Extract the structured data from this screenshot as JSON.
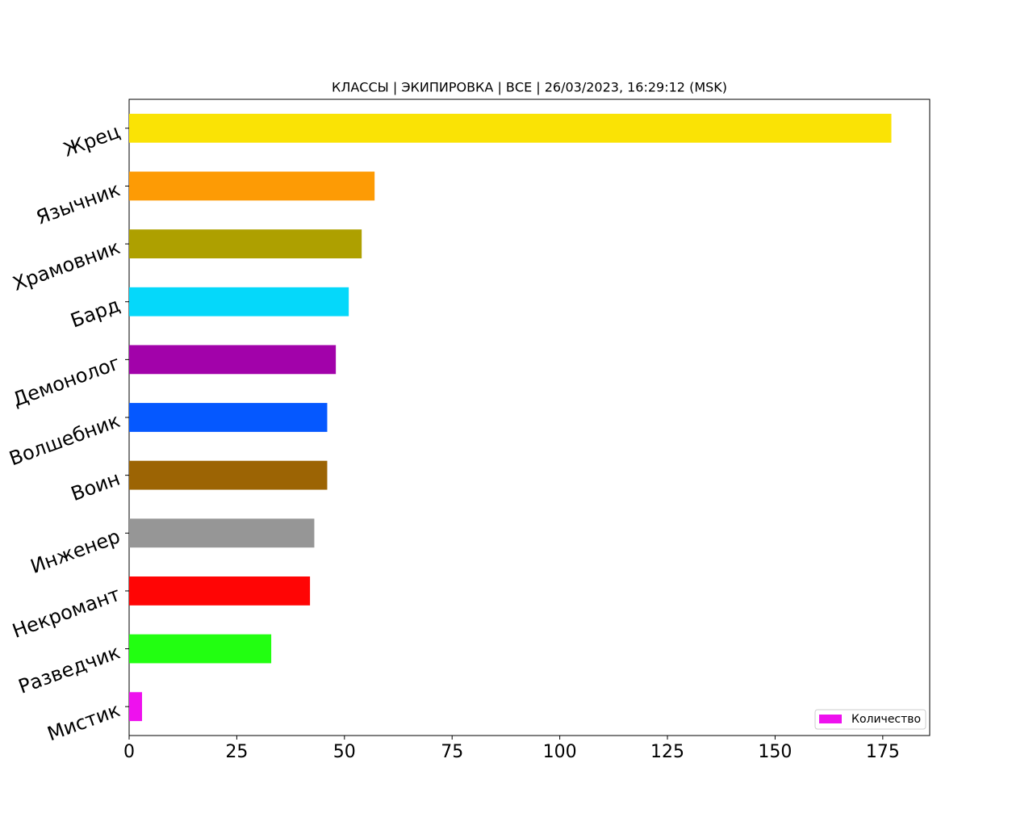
{
  "chart_data": {
    "type": "barh",
    "title": "КЛАССЫ | ЭКИПИРОВКА | ВСЕ | 26/03/2023, 16:29:12 (MSK)",
    "categories": [
      "Мистик",
      "Разведчик",
      "Некромант",
      "Инженер",
      "Воин",
      "Волшебник",
      "Демонолог",
      "Бард",
      "Храмовник",
      "Язычник",
      "Жрец"
    ],
    "series": [
      {
        "name": "Количество",
        "colors": [
          "#ee11ee",
          "#22ff11",
          "#ff0505",
          "#969696",
          "#9c6404",
          "#0558ff",
          "#a202aa",
          "#05d8fa",
          "#aea000",
          "#fd9b05",
          "#fae305"
        ],
        "values": [
          3,
          33,
          42,
          43,
          46,
          46,
          48,
          51,
          54,
          57,
          177
        ]
      }
    ],
    "xlim": [
      0,
      185.9
    ],
    "xticks": [
      0,
      25,
      50,
      75,
      100,
      125,
      150,
      175
    ],
    "legend": "lower right"
  }
}
